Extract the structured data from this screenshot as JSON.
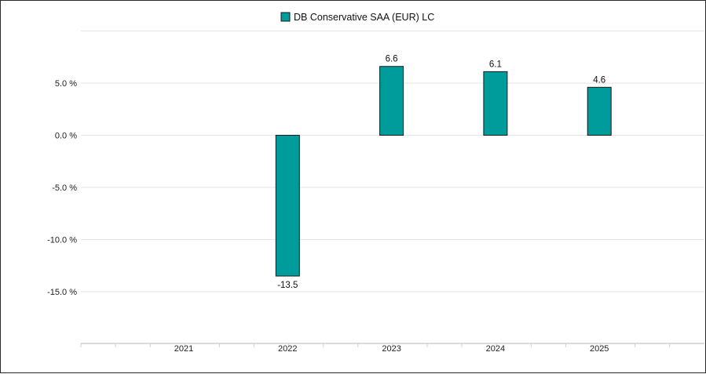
{
  "chart_data": {
    "type": "bar",
    "categories": [
      "2021",
      "2022",
      "2023",
      "2024",
      "2025"
    ],
    "series": [
      {
        "name": "DB Conservative SAA (EUR) LC",
        "values": [
          null,
          -13.5,
          6.6,
          6.1,
          4.6
        ],
        "data_labels": [
          "",
          "-13.5",
          "6.6",
          "6.1",
          "4.6"
        ],
        "color": "#009B9B"
      }
    ],
    "yticks": [
      5.0,
      0.0,
      -5.0,
      -10.0,
      -15.0
    ],
    "ytick_labels": [
      "5.0 %",
      "0.0 %",
      "-5.0 %",
      "-10.0 %",
      "-15.0 %"
    ],
    "ylim": [
      -20,
      10
    ],
    "title": "",
    "xlabel": "",
    "ylabel": "",
    "grid": true,
    "legend_position": "top-center",
    "colors": {
      "bar": "#009B9B",
      "bar_border": "#1a1a1a",
      "grid": "#e4e4e4",
      "axis": "#cfcfcf"
    }
  }
}
